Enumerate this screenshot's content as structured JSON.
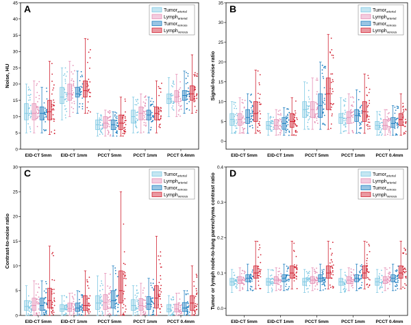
{
  "legend": {
    "entries": [
      {
        "main": "Tumor",
        "sub": "arterial",
        "color": "#7ec8e3"
      },
      {
        "main": "Lymph",
        "sub": "arterial",
        "color": "#e58fb5"
      },
      {
        "main": "Tumor",
        "sub": "venous",
        "color": "#1f7fc0"
      },
      {
        "main": "Lymph",
        "sub": "venous",
        "color": "#d12030"
      }
    ]
  },
  "chart_data": [
    {
      "type": "box",
      "panel_label": "A",
      "ylabel": "Noise, HU",
      "ylim": [
        0,
        45
      ],
      "yticks": [
        0,
        5,
        10,
        15,
        20,
        25,
        30,
        35,
        40,
        45
      ],
      "categories": [
        "EID-CT 5mm",
        "EID-CT 1mm",
        "PCCT  5mm",
        "PCCT  1mm",
        "PCCT  0.4mm"
      ],
      "series": [
        {
          "legend_index": 0,
          "boxes": [
            {
              "min": 5,
              "q1": 9,
              "median": 11,
              "q3": 14,
              "max": 20
            },
            {
              "min": 9,
              "q1": 14,
              "median": 16,
              "q3": 19,
              "max": 25
            },
            {
              "min": 4,
              "q1": 6,
              "median": 7.5,
              "q3": 9,
              "max": 11
            },
            {
              "min": 5,
              "q1": 8,
              "median": 10,
              "q3": 12,
              "max": 16
            },
            {
              "min": 10,
              "q1": 14,
              "median": 15.5,
              "q3": 17,
              "max": 22
            }
          ]
        },
        {
          "legend_index": 1,
          "boxes": [
            {
              "min": 5,
              "q1": 9,
              "median": 11,
              "q3": 14,
              "max": 21
            },
            {
              "min": 10,
              "q1": 15,
              "median": 17,
              "q3": 20,
              "max": 27
            },
            {
              "min": 4,
              "q1": 6.5,
              "median": 8,
              "q3": 10,
              "max": 12
            },
            {
              "min": 5,
              "q1": 9,
              "median": 11,
              "q3": 13,
              "max": 17
            },
            {
              "min": 10,
              "q1": 14.5,
              "median": 16,
              "q3": 18,
              "max": 23
            }
          ]
        },
        {
          "legend_index": 2,
          "boxes": [
            {
              "min": 5,
              "q1": 9,
              "median": 11,
              "q3": 13,
              "max": 19
            },
            {
              "min": 11,
              "q1": 16,
              "median": 17,
              "q3": 19,
              "max": 24
            },
            {
              "min": 4,
              "q1": 6,
              "median": 7.5,
              "q3": 9,
              "max": 11.5
            },
            {
              "min": 5,
              "q1": 9,
              "median": 10.5,
              "q3": 12,
              "max": 16
            },
            {
              "min": 11,
              "q1": 15,
              "median": 16.5,
              "q3": 18,
              "max": 24
            }
          ]
        },
        {
          "legend_index": 3,
          "boxes": [
            {
              "min": 4.5,
              "q1": 9,
              "median": 11.5,
              "q3": 15,
              "max": 27
            },
            {
              "min": 11,
              "q1": 16,
              "median": 18,
              "q3": 21,
              "max": 34
            },
            {
              "min": 4,
              "q1": 6,
              "median": 8,
              "q3": 10.5,
              "max": 16
            },
            {
              "min": 5,
              "q1": 9,
              "median": 11,
              "q3": 13,
              "max": 21
            },
            {
              "min": 11,
              "q1": 15,
              "median": 17,
              "q3": 19.5,
              "max": 29
            }
          ]
        }
      ]
    },
    {
      "type": "box",
      "panel_label": "B",
      "ylabel": "Signal-to-noise ratio",
      "ylim": [
        -2,
        35
      ],
      "yticks": [
        0,
        5,
        10,
        15,
        20,
        25,
        30,
        35
      ],
      "categories": [
        "EID-CT 5mm",
        "EID-CT 1mm",
        "PCCT  5mm",
        "PCCT  1mm",
        "PCCT  0.4mm"
      ],
      "series": [
        {
          "legend_index": 0,
          "boxes": [
            {
              "min": 2,
              "q1": 4,
              "median": 5.5,
              "q3": 7,
              "max": 10
            },
            {
              "min": 1.5,
              "q1": 3,
              "median": 4,
              "q3": 5,
              "max": 7
            },
            {
              "min": 3,
              "q1": 6,
              "median": 8,
              "q3": 10,
              "max": 15
            },
            {
              "min": 2,
              "q1": 4.5,
              "median": 6,
              "q3": 7,
              "max": 11
            },
            {
              "min": 1.5,
              "q1": 3,
              "median": 4,
              "q3": 5,
              "max": 7.5
            }
          ]
        },
        {
          "legend_index": 1,
          "boxes": [
            {
              "min": 2,
              "q1": 4,
              "median": 5.5,
              "q3": 7,
              "max": 11
            },
            {
              "min": 1.5,
              "q1": 3,
              "median": 4,
              "q3": 5.5,
              "max": 8
            },
            {
              "min": 3,
              "q1": 6,
              "median": 8,
              "q3": 10,
              "max": 16
            },
            {
              "min": 2,
              "q1": 4.5,
              "median": 6,
              "q3": 7.5,
              "max": 12
            },
            {
              "min": 1.5,
              "q1": 3,
              "median": 4,
              "q3": 5.5,
              "max": 8
            }
          ]
        },
        {
          "legend_index": 2,
          "boxes": [
            {
              "min": 2,
              "q1": 4.5,
              "median": 6,
              "q3": 8,
              "max": 12
            },
            {
              "min": 1.5,
              "q1": 3,
              "median": 4.5,
              "q3": 6,
              "max": 8.5
            },
            {
              "min": 3,
              "q1": 6,
              "median": 9,
              "q3": 12,
              "max": 20
            },
            {
              "min": 2,
              "q1": 5,
              "median": 6.5,
              "q3": 8,
              "max": 13
            },
            {
              "min": 1.5,
              "q1": 3.5,
              "median": 4.5,
              "q3": 6,
              "max": 9
            }
          ]
        },
        {
          "legend_index": 3,
          "boxes": [
            {
              "min": 2,
              "q1": 5,
              "median": 7,
              "q3": 10,
              "max": 18
            },
            {
              "min": 1.5,
              "q1": 3.5,
              "median": 5,
              "q3": 7,
              "max": 11
            },
            {
              "min": 3,
              "q1": 8,
              "median": 12,
              "q3": 16,
              "max": 27
            },
            {
              "min": 2,
              "q1": 5,
              "median": 7.5,
              "q3": 10,
              "max": 17
            },
            {
              "min": 1.5,
              "q1": 4,
              "median": 5.5,
              "q3": 7,
              "max": 12
            }
          ]
        }
      ]
    },
    {
      "type": "box",
      "panel_label": "C",
      "ylabel": "Contrast-to-noise ratio",
      "ylim": [
        0,
        30
      ],
      "yticks": [
        0,
        5,
        10,
        15,
        20,
        25,
        30
      ],
      "categories": [
        "EID-CT 5mm",
        "EID-CT 1mm",
        "PCCT  5mm",
        "PCCT  1mm",
        "PCCT  0.4mm"
      ],
      "series": [
        {
          "legend_index": 0,
          "boxes": [
            {
              "min": 0,
              "q1": 1,
              "median": 1.8,
              "q3": 3,
              "max": 6
            },
            {
              "min": 0,
              "q1": 0.8,
              "median": 1.3,
              "q3": 2.2,
              "max": 4
            },
            {
              "min": 0,
              "q1": 1.2,
              "median": 2.5,
              "q3": 4,
              "max": 8
            },
            {
              "min": 0,
              "q1": 1,
              "median": 2,
              "q3": 3.2,
              "max": 6
            },
            {
              "min": 0,
              "q1": 0.7,
              "median": 1.3,
              "q3": 2.2,
              "max": 4
            }
          ]
        },
        {
          "legend_index": 1,
          "boxes": [
            {
              "min": 0,
              "q1": 1,
              "median": 2,
              "q3": 3.5,
              "max": 7
            },
            {
              "min": 0,
              "q1": 0.8,
              "median": 1.4,
              "q3": 2.5,
              "max": 4.5
            },
            {
              "min": 0,
              "q1": 1.2,
              "median": 2.6,
              "q3": 4.2,
              "max": 8.5
            },
            {
              "min": 0,
              "q1": 1,
              "median": 2,
              "q3": 3.4,
              "max": 6.5
            },
            {
              "min": 0,
              "q1": 0.7,
              "median": 1.3,
              "q3": 2.3,
              "max": 4.5
            }
          ]
        },
        {
          "legend_index": 2,
          "boxes": [
            {
              "min": 0,
              "q1": 1,
              "median": 2,
              "q3": 3.5,
              "max": 7
            },
            {
              "min": 0,
              "q1": 0.8,
              "median": 1.5,
              "q3": 2.5,
              "max": 5
            },
            {
              "min": 0,
              "q1": 1.5,
              "median": 3,
              "q3": 5,
              "max": 10
            },
            {
              "min": 0,
              "q1": 1.2,
              "median": 2.3,
              "q3": 3.8,
              "max": 7.5
            },
            {
              "min": 0,
              "q1": 0.8,
              "median": 1.5,
              "q3": 2.6,
              "max": 5
            }
          ]
        },
        {
          "legend_index": 3,
          "boxes": [
            {
              "min": 0,
              "q1": 1.5,
              "median": 3,
              "q3": 5.5,
              "max": 14
            },
            {
              "min": 0,
              "q1": 1,
              "median": 2,
              "q3": 4,
              "max": 9
            },
            {
              "min": 0,
              "q1": 2.5,
              "median": 5,
              "q3": 9,
              "max": 25
            },
            {
              "min": 0,
              "q1": 1.5,
              "median": 3.5,
              "q3": 6,
              "max": 16
            },
            {
              "min": 0,
              "q1": 1,
              "median": 2.5,
              "q3": 4,
              "max": 10
            }
          ]
        }
      ]
    },
    {
      "type": "box",
      "panel_label": "D",
      "ylabel": "Tumor or lymph node-to-lung parenchyma contrast ratio",
      "ylim": [
        -0.02,
        0.4
      ],
      "yticks": [
        0.0,
        0.1,
        0.2,
        0.3,
        0.4
      ],
      "categories": [
        "EID-CT 5mm",
        "EID-CT 1mm",
        "PCCT  5mm",
        "PCCT  1mm",
        "PCCT  0.4mm"
      ],
      "series": [
        {
          "legend_index": 0,
          "boxes": [
            {
              "min": 0.045,
              "q1": 0.065,
              "median": 0.075,
              "q3": 0.085,
              "max": 0.11
            },
            {
              "min": 0.045,
              "q1": 0.065,
              "median": 0.075,
              "q3": 0.085,
              "max": 0.11
            },
            {
              "min": 0.045,
              "q1": 0.065,
              "median": 0.075,
              "q3": 0.085,
              "max": 0.11
            },
            {
              "min": 0.045,
              "q1": 0.065,
              "median": 0.075,
              "q3": 0.085,
              "max": 0.11
            },
            {
              "min": 0.045,
              "q1": 0.065,
              "median": 0.075,
              "q3": 0.085,
              "max": 0.11
            }
          ]
        },
        {
          "legend_index": 1,
          "boxes": [
            {
              "min": 0.05,
              "q1": 0.07,
              "median": 0.08,
              "q3": 0.09,
              "max": 0.115
            },
            {
              "min": 0.05,
              "q1": 0.07,
              "median": 0.08,
              "q3": 0.09,
              "max": 0.115
            },
            {
              "min": 0.05,
              "q1": 0.07,
              "median": 0.08,
              "q3": 0.09,
              "max": 0.115
            },
            {
              "min": 0.05,
              "q1": 0.07,
              "median": 0.08,
              "q3": 0.09,
              "max": 0.115
            },
            {
              "min": 0.05,
              "q1": 0.07,
              "median": 0.08,
              "q3": 0.09,
              "max": 0.115
            }
          ]
        },
        {
          "legend_index": 2,
          "boxes": [
            {
              "min": 0.05,
              "q1": 0.075,
              "median": 0.085,
              "q3": 0.095,
              "max": 0.125
            },
            {
              "min": 0.05,
              "q1": 0.075,
              "median": 0.085,
              "q3": 0.095,
              "max": 0.125
            },
            {
              "min": 0.05,
              "q1": 0.075,
              "median": 0.085,
              "q3": 0.095,
              "max": 0.125
            },
            {
              "min": 0.05,
              "q1": 0.075,
              "median": 0.085,
              "q3": 0.095,
              "max": 0.125
            },
            {
              "min": 0.05,
              "q1": 0.075,
              "median": 0.085,
              "q3": 0.095,
              "max": 0.125
            }
          ]
        },
        {
          "legend_index": 3,
          "boxes": [
            {
              "min": 0.055,
              "q1": 0.085,
              "median": 0.1,
              "q3": 0.12,
              "max": 0.19
            },
            {
              "min": 0.055,
              "q1": 0.085,
              "median": 0.1,
              "q3": 0.12,
              "max": 0.19
            },
            {
              "min": 0.055,
              "q1": 0.085,
              "median": 0.1,
              "q3": 0.12,
              "max": 0.19
            },
            {
              "min": 0.055,
              "q1": 0.085,
              "median": 0.1,
              "q3": 0.12,
              "max": 0.19
            },
            {
              "min": 0.055,
              "q1": 0.085,
              "median": 0.1,
              "q3": 0.12,
              "max": 0.19
            }
          ]
        }
      ]
    }
  ]
}
